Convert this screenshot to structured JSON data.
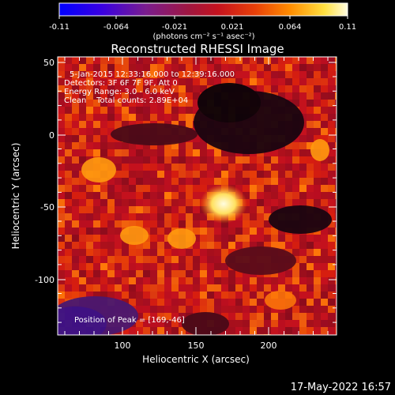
{
  "colorbar": {
    "tick_labels": [
      "-0.11",
      "-0.064",
      "-0.021",
      "0.021",
      "0.064",
      "0.11"
    ],
    "units_label": "(photons cm⁻² s⁻¹ asec⁻²)",
    "range": [
      -0.11,
      0.11
    ]
  },
  "plot": {
    "title": "Reconstructed RHESSI Image",
    "info_lines": [
      "5-Jan-2015 12:33:16.000 to 12:39:16.000",
      "Detectors: 3F 6F 7F 9F, Att 0",
      "Energy Range: 3.0 - 6.0 keV",
      "Clean    Total counts: 2.89E+04"
    ],
    "peak_label": "Position of Peak = [169,-46]",
    "xlabel": "Heliocentric X (arcsec)",
    "ylabel": "Heliocentric Y (arcsec)",
    "x_ticks": [
      "100",
      "150",
      "200"
    ],
    "y_ticks": [
      "50",
      "0",
      "-50",
      "-100"
    ]
  },
  "footer": {
    "timestamp": "17-May-2022 16:57"
  },
  "colors": {
    "background": "#000000",
    "text": "#ffffff",
    "axes": "#ffffff",
    "peak": "#fffde0",
    "colormap_stops": [
      "#0000ff",
      "#5a0cc8",
      "#7a1d8e",
      "#9a1f5a",
      "#c4121e",
      "#e84008",
      "#ff8c00",
      "#ffe040",
      "#fffde0"
    ]
  }
}
